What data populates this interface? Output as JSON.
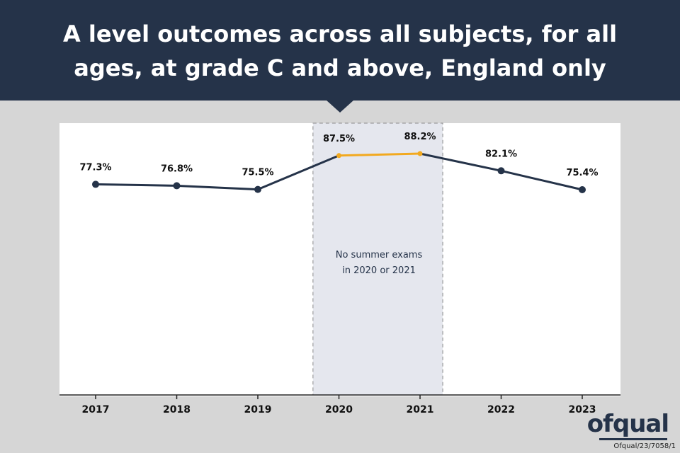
{
  "header": {
    "title": "A level outcomes across all subjects, for all ages, at grade C and above, England only"
  },
  "chart_data": {
    "type": "line",
    "title": "A level outcomes across all subjects, for all ages, at grade C and above, England only",
    "categories": [
      "2017",
      "2018",
      "2019",
      "2020",
      "2021",
      "2022",
      "2023"
    ],
    "values": [
      77.3,
      76.8,
      75.5,
      87.5,
      88.2,
      82.1,
      75.4
    ],
    "value_labels": [
      "77.3%",
      "76.8%",
      "75.5%",
      "87.5%",
      "88.2%",
      "82.1%",
      "75.4%"
    ],
    "highlighted_categories": [
      "2020",
      "2021"
    ],
    "annotation": {
      "line1": "No summer exams",
      "line2": "in 2020 or 2021"
    },
    "xlabel": "",
    "ylabel": "",
    "ylim": [
      0,
      100
    ],
    "grid": false,
    "legend": "none",
    "colors": {
      "line": "#253349",
      "highlight_line": "#f2a91f",
      "shade": "#e5e7ee",
      "shade_border": "#8a8a8a"
    }
  },
  "footer": {
    "logo": "ofqual",
    "reference": "Ofqual/23/7058/1"
  }
}
